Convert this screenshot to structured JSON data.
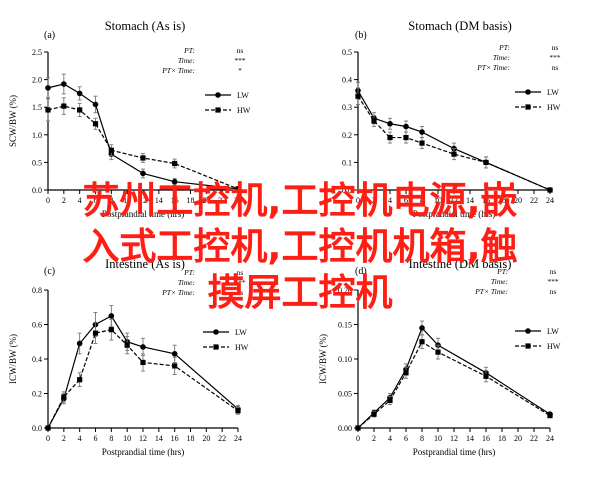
{
  "chart_data": [
    {
      "type": "line",
      "panel_label": "(a)",
      "title": "Stomach (As is)",
      "xlabel": "Postprandial time (hrs)",
      "ylabel": "SCW/BW (%)",
      "ylim": [
        0,
        2.5
      ],
      "yticks": [
        "0.0",
        "0.5",
        "1.0",
        "1.5",
        "2.0",
        "2.5"
      ],
      "x": [
        0,
        2,
        4,
        6,
        8,
        12,
        16,
        24
      ],
      "xticks": [
        0,
        2,
        4,
        6,
        8,
        10,
        12,
        14,
        16,
        18,
        20,
        22,
        24
      ],
      "series": [
        {
          "name": "LW",
          "style": "solid",
          "marker": "circle",
          "values": [
            1.85,
            1.92,
            1.75,
            1.55,
            0.65,
            0.3,
            0.15,
            0.02
          ],
          "errors": [
            0.18,
            0.18,
            0.12,
            0.15,
            0.1,
            0.08,
            0.06,
            0.02
          ]
        },
        {
          "name": "HW",
          "style": "dashed",
          "marker": "square",
          "values": [
            1.45,
            1.52,
            1.45,
            1.2,
            0.72,
            0.58,
            0.48,
            0.02
          ],
          "errors": [
            0.2,
            0.15,
            0.12,
            0.1,
            0.1,
            0.08,
            0.08,
            0.02
          ]
        }
      ],
      "stats": [
        {
          "label": "PT:",
          "value": "ns"
        },
        {
          "label": "Time:",
          "value": "***"
        },
        {
          "label": "PT× Time:",
          "value": "*"
        }
      ],
      "grid": false,
      "legend": "top-right"
    },
    {
      "type": "line",
      "panel_label": "(b)",
      "title": "Stomach (DM basis)",
      "xlabel": "Postprandial time (hrs)",
      "ylabel": "",
      "ylim": [
        0,
        0.5
      ],
      "yticks": [
        "0.0",
        "0.1",
        "0.2",
        "0.3",
        "0.4",
        "0.5"
      ],
      "x": [
        0,
        2,
        4,
        6,
        8,
        12,
        16,
        24
      ],
      "xticks": [
        0,
        2,
        4,
        6,
        8,
        10,
        12,
        14,
        16,
        18,
        20,
        22,
        24
      ],
      "series": [
        {
          "name": "LW",
          "style": "solid",
          "marker": "circle",
          "values": [
            0.36,
            0.26,
            0.24,
            0.23,
            0.21,
            0.15,
            0.1,
            0.0
          ],
          "errors": [
            0.03,
            0.02,
            0.02,
            0.02,
            0.02,
            0.02,
            0.02,
            0.0
          ]
        },
        {
          "name": "HW",
          "style": "dashed",
          "marker": "square",
          "values": [
            0.34,
            0.25,
            0.19,
            0.19,
            0.17,
            0.13,
            0.1,
            0.0
          ],
          "errors": [
            0.03,
            0.02,
            0.02,
            0.02,
            0.02,
            0.02,
            0.02,
            0.0
          ]
        }
      ],
      "stats": [
        {
          "label": "PT:",
          "value": "ns"
        },
        {
          "label": "Time:",
          "value": "***"
        },
        {
          "label": "PT× Time:",
          "value": "ns"
        }
      ],
      "grid": false,
      "legend": "top-right"
    },
    {
      "type": "line",
      "panel_label": "(c)",
      "title": "Intestine (As is)",
      "xlabel": "Postprandial time (hrs)",
      "ylabel": "ICW/BW (%)",
      "ylim": [
        0,
        0.8
      ],
      "yticks": [
        "0.0",
        "0.2",
        "0.4",
        "0.6",
        "0.8"
      ],
      "x": [
        0,
        2,
        4,
        6,
        8,
        10,
        12,
        16,
        24
      ],
      "xticks": [
        0,
        2,
        4,
        6,
        8,
        10,
        12,
        14,
        16,
        18,
        20,
        22,
        24
      ],
      "series": [
        {
          "name": "LW",
          "style": "solid",
          "marker": "circle",
          "values": [
            0.0,
            0.17,
            0.49,
            0.6,
            0.65,
            0.5,
            0.47,
            0.43,
            0.11
          ],
          "errors": [
            0.0,
            0.03,
            0.06,
            0.07,
            0.06,
            0.05,
            0.05,
            0.05,
            0.02
          ]
        },
        {
          "name": "HW",
          "style": "dashed",
          "marker": "square",
          "values": [
            0.0,
            0.18,
            0.28,
            0.55,
            0.57,
            0.48,
            0.38,
            0.36,
            0.1
          ],
          "errors": [
            0.0,
            0.03,
            0.04,
            0.06,
            0.06,
            0.05,
            0.05,
            0.05,
            0.02
          ]
        }
      ],
      "stats": [
        {
          "label": "PT:",
          "value": "ns"
        },
        {
          "label": "Time:",
          "value": "***"
        },
        {
          "label": "PT× Time:",
          "value": "ns"
        }
      ],
      "grid": false,
      "legend": "top-right"
    },
    {
      "type": "line",
      "panel_label": "(d)",
      "title": "Intestine (DM basis)",
      "xlabel": "Postprandial time (hrs)",
      "ylabel": "ICW/BW (%)",
      "ylim": [
        0,
        0.2
      ],
      "yticks": [
        "0.00",
        "0.05",
        "0.10",
        "0.15",
        "0.20"
      ],
      "x": [
        0,
        2,
        4,
        6,
        8,
        10,
        16,
        24
      ],
      "xticks": [
        0,
        2,
        4,
        6,
        8,
        10,
        12,
        14,
        16,
        18,
        20,
        22,
        24
      ],
      "series": [
        {
          "name": "LW",
          "style": "solid",
          "marker": "circle",
          "values": [
            0.0,
            0.022,
            0.044,
            0.085,
            0.145,
            0.12,
            0.08,
            0.02
          ],
          "errors": [
            0.0,
            0.004,
            0.006,
            0.008,
            0.01,
            0.01,
            0.008,
            0.003
          ]
        },
        {
          "name": "HW",
          "style": "dashed",
          "marker": "square",
          "values": [
            0.0,
            0.02,
            0.04,
            0.08,
            0.125,
            0.11,
            0.075,
            0.018
          ],
          "errors": [
            0.0,
            0.004,
            0.006,
            0.008,
            0.01,
            0.01,
            0.008,
            0.003
          ]
        }
      ],
      "stats": [
        {
          "label": "PT:",
          "value": "ns"
        },
        {
          "label": "Time:",
          "value": "***"
        },
        {
          "label": "PT× Time:",
          "value": "ns"
        }
      ],
      "grid": false,
      "legend": "top-right"
    }
  ],
  "watermark": {
    "line1": "苏州工控机,工控机电源,嵌",
    "line2": "入式工控机,工控机机箱,触",
    "line3": "摸屏工控机",
    "color": "#ff1e14"
  }
}
